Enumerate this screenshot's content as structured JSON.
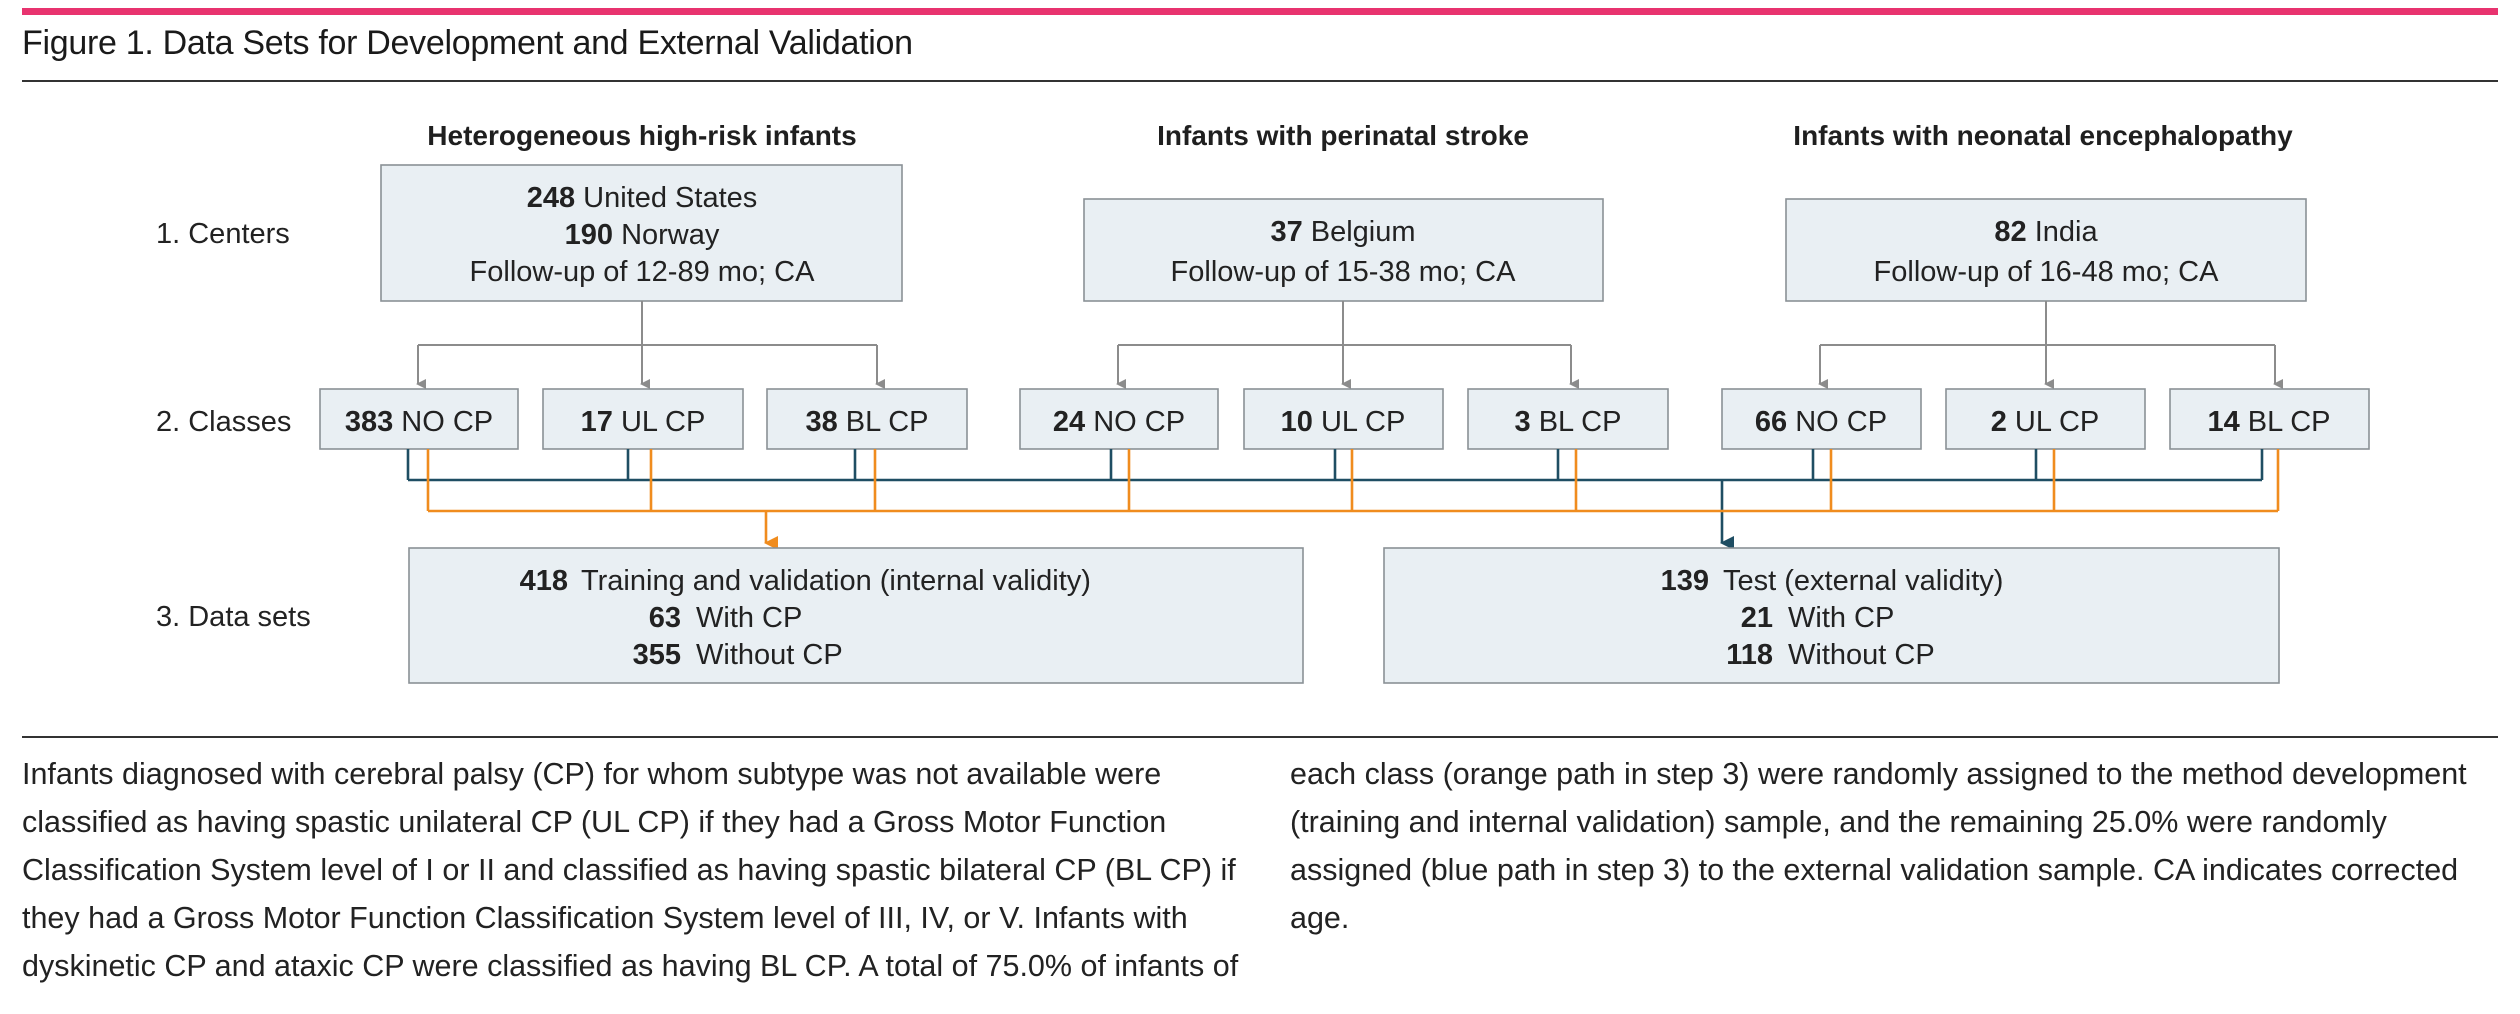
{
  "figure": {
    "title": "Figure 1. Data Sets for Development and External Validation",
    "accent_color": "#e8336f"
  },
  "rows": {
    "centers": "1. Centers",
    "classes": "2. Classes",
    "datasets": "3. Data sets"
  },
  "groups": [
    {
      "heading": "Heterogeneous high-risk infants",
      "center_lines": [
        {
          "num": "248",
          "text": "United States"
        },
        {
          "num": "190",
          "text": "Norway"
        }
      ],
      "followup": "Follow-up of 12-89 mo; CA",
      "classes": [
        {
          "num": "383",
          "label": "NO CP"
        },
        {
          "num": "17",
          "label": "UL CP"
        },
        {
          "num": "38",
          "label": "BL CP"
        }
      ]
    },
    {
      "heading": "Infants with perinatal stroke",
      "center_lines": [
        {
          "num": "37",
          "text": "Belgium"
        }
      ],
      "followup": "Follow-up of 15-38 mo; CA",
      "classes": [
        {
          "num": "24",
          "label": "NO CP"
        },
        {
          "num": "10",
          "label": "UL CP"
        },
        {
          "num": "3",
          "label": "BL CP"
        }
      ]
    },
    {
      "heading": "Infants with neonatal encephalopathy",
      "center_lines": [
        {
          "num": "82",
          "text": "India"
        }
      ],
      "followup": "Follow-up of 16-48 mo; CA",
      "classes": [
        {
          "num": "66",
          "label": "NO CP"
        },
        {
          "num": "2",
          "label": "UL CP"
        },
        {
          "num": "14",
          "label": "BL CP"
        }
      ]
    }
  ],
  "datasets": [
    {
      "lines": [
        {
          "num": "418",
          "text": "Training and validation (internal validity)"
        },
        {
          "num": "63",
          "text": "With CP"
        },
        {
          "num": "355",
          "text": "Without CP"
        }
      ]
    },
    {
      "lines": [
        {
          "num": "139",
          "text": "Test (external validity)"
        },
        {
          "num": "21",
          "text": "With CP"
        },
        {
          "num": "118",
          "text": "Without CP"
        }
      ]
    }
  ],
  "path_colors": {
    "orange": "#f08c1e",
    "blue": "#1f4e63"
  },
  "caption": {
    "left": "Infants diagnosed with cerebral palsy (CP) for whom subtype was not available were classified as having spastic unilateral CP (UL CP) if they had a Gross Motor Function Classification System level of I or II and classified as having spastic bilateral CP (BL CP) if they had a Gross Motor Function Classification System level of III, IV, or V. Infants with dyskinetic CP and ataxic CP were classified as having BL CP. A total of 75.0% of infants of",
    "right": "each class (orange path in step 3) were randomly assigned to the method development (training and internal validation) sample, and the remaining 25.0% were randomly assigned (blue path in step 3) to the external validation sample. CA indicates corrected age."
  }
}
